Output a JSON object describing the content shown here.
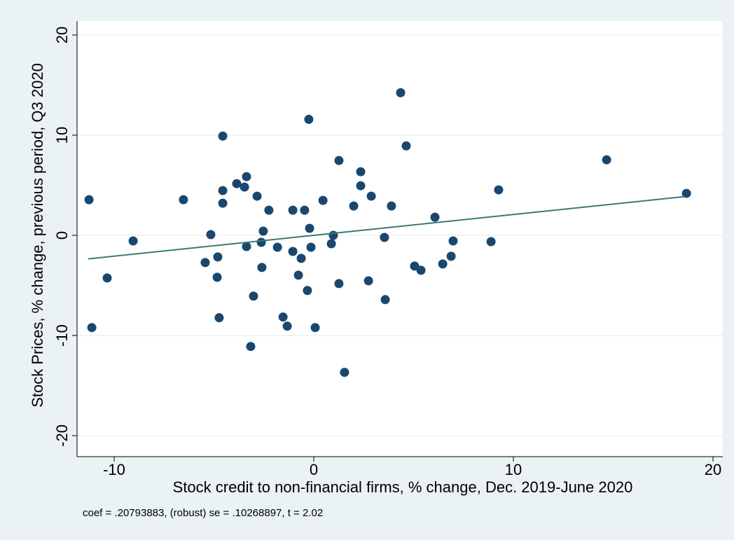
{
  "chart_data": {
    "type": "scatter",
    "x_label": "Stock credit to non-financial firms, % change, Dec. 2019-June 2020",
    "y_label": "Stock Prices, % change, previous period, Q3 2020",
    "note": "coef = .20793883, (robust) se = .10268897, t = 2.02",
    "xlim": [
      -11.86,
      20.49
    ],
    "ylim": [
      -22.1,
      21.4
    ],
    "xticks": [
      -10,
      0,
      10,
      20
    ],
    "yticks": [
      -20,
      -10,
      0,
      10,
      20
    ],
    "grid": true,
    "series": [
      {
        "color": "#1a476f",
        "x": [
          -11.26,
          -11.12,
          -9.05,
          -10.35,
          -6.53,
          -5.44,
          -5.16,
          -4.84,
          -4.81,
          -4.74,
          -4.56,
          -4.56,
          -4.56,
          -3.86,
          -3.47,
          -3.37,
          -3.37,
          -3.16,
          -3.02,
          -2.84,
          -2.63,
          -2.6,
          -2.53,
          -2.25,
          -1.82,
          -1.54,
          -1.33,
          -1.05,
          -1.05,
          -0.77,
          -0.63,
          -0.46,
          -0.32,
          -0.25,
          -0.21,
          -0.14,
          0.07,
          0.46,
          0.88,
          0.98,
          1.26,
          1.26,
          1.54,
          2.0,
          2.35,
          2.35,
          2.74,
          2.88,
          3.54,
          3.58,
          3.89,
          4.35,
          4.63,
          5.05,
          5.37,
          6.07,
          6.46,
          6.88,
          6.98,
          8.88,
          9.26,
          14.67,
          18.67
        ],
        "values": [
          3.56,
          -9.21,
          -0.56,
          -4.26,
          3.56,
          -2.72,
          0.07,
          -4.19,
          -2.16,
          -8.23,
          9.91,
          4.47,
          3.21,
          5.16,
          4.82,
          5.86,
          -1.12,
          -11.1,
          -6.07,
          3.91,
          -0.7,
          -3.21,
          0.42,
          2.51,
          -1.19,
          -8.16,
          -9.07,
          2.51,
          -1.61,
          -3.98,
          -2.3,
          2.51,
          -5.51,
          11.58,
          0.7,
          -1.19,
          -9.21,
          3.49,
          -0.84,
          0.0,
          7.47,
          -4.82,
          -13.68,
          2.93,
          6.35,
          4.95,
          -4.54,
          3.91,
          -0.21,
          -6.42,
          2.93,
          14.24,
          8.93,
          -3.07,
          -3.49,
          1.81,
          -2.86,
          -2.09,
          -0.56,
          -0.63,
          4.54,
          7.54,
          4.19
        ]
      }
    ],
    "fit": {
      "color": "#3a7a72",
      "x": [
        -11.3,
        18.6
      ],
      "values": [
        -2.35,
        3.87
      ]
    }
  }
}
